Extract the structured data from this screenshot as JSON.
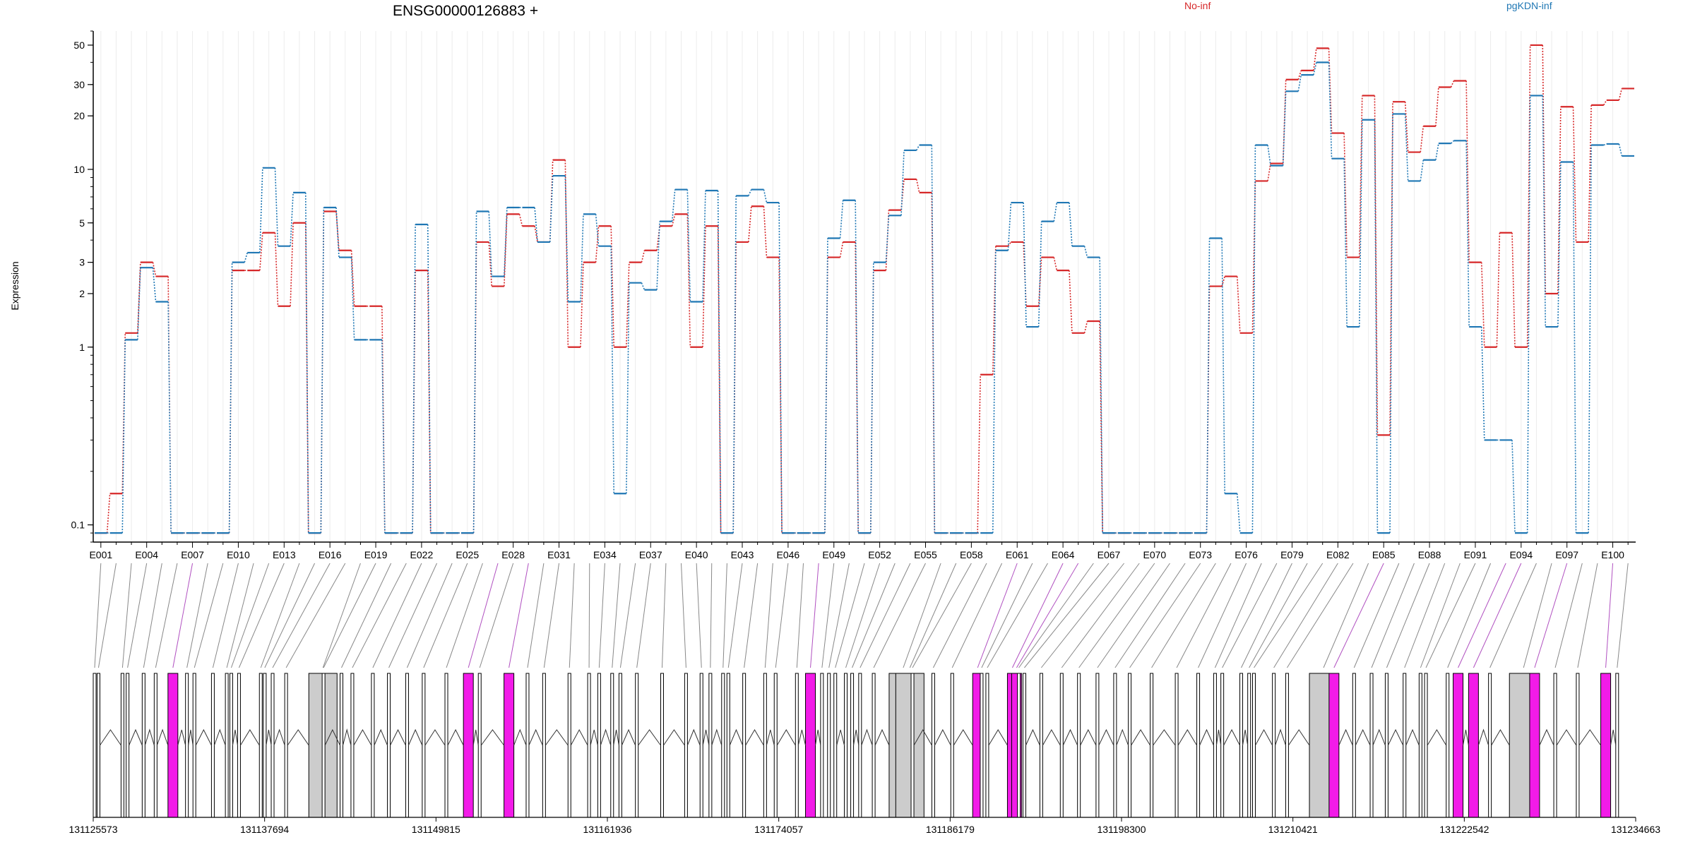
{
  "chart_data": {
    "type": "line",
    "title": "ENSG00000126883 +",
    "ylabel": "Expression",
    "yscale": "log",
    "ylim": [
      0.08,
      60
    ],
    "yticks": [
      0.1,
      1,
      2,
      3,
      5,
      10,
      20,
      30,
      50
    ],
    "ytick_labels": [
      "0.1",
      "1",
      "2",
      "3",
      "5",
      "10",
      "20",
      "30",
      "50"
    ],
    "legend": [
      "No-inf",
      "pgKDN-inf"
    ],
    "colors": {
      "No-inf": "#d62728",
      "pgKDN-inf": "#1f77b4"
    },
    "grid": "vertical",
    "exon_labels": [
      "E001",
      "E004",
      "E007",
      "E010",
      "E013",
      "E016",
      "E019",
      "E022",
      "E025",
      "E028",
      "E031",
      "E034",
      "E037",
      "E040",
      "E043",
      "E046",
      "E049",
      "E052",
      "E055",
      "E058",
      "E061",
      "E064",
      "E067",
      "E070",
      "E073",
      "E076",
      "E079",
      "E082",
      "E085",
      "E088",
      "E091",
      "E094",
      "E097",
      "E100"
    ],
    "x": [
      "E001",
      "E002",
      "E003",
      "E004",
      "E005",
      "E006",
      "E007",
      "E008",
      "E009",
      "E010",
      "E011",
      "E012",
      "E013",
      "E014",
      "E015",
      "E016",
      "E017",
      "E018",
      "E019",
      "E020",
      "E021",
      "E022",
      "E023",
      "E024",
      "E025",
      "E026",
      "E027",
      "E028",
      "E029",
      "E030",
      "E031",
      "E032",
      "E033",
      "E034",
      "E035",
      "E036",
      "E037",
      "E038",
      "E039",
      "E040",
      "E041",
      "E042",
      "E043",
      "E044",
      "E045",
      "E046",
      "E047",
      "E048",
      "E049",
      "E050",
      "E051",
      "E052",
      "E053",
      "E054",
      "E055",
      "E056",
      "E057",
      "E058",
      "E059",
      "E060",
      "E061",
      "E062",
      "E063",
      "E064",
      "E065",
      "E066",
      "E067",
      "E068",
      "E069",
      "E070",
      "E071",
      "E072",
      "E073",
      "E074",
      "E075",
      "E076",
      "E077",
      "E078",
      "E079",
      "E080",
      "E081",
      "E082",
      "E083",
      "E084",
      "E085",
      "E086",
      "E087",
      "E088",
      "E089",
      "E090",
      "E091",
      "E092",
      "E093",
      "E094",
      "E095",
      "E096",
      "E097",
      "E098",
      "E099",
      "E100",
      "E101"
    ],
    "series": [
      {
        "name": "No-inf",
        "values": [
          0.09,
          0.15,
          1.2,
          3.0,
          2.5,
          0.09,
          0.09,
          0.09,
          0.09,
          2.7,
          2.7,
          4.4,
          1.7,
          5.0,
          0.09,
          5.8,
          3.5,
          1.7,
          1.7,
          0.09,
          0.09,
          2.7,
          0.09,
          0.09,
          0.09,
          3.9,
          2.2,
          5.6,
          4.8,
          3.9,
          11.3,
          1.0,
          3.0,
          4.8,
          1.0,
          3.0,
          3.5,
          4.8,
          5.6,
          1.0,
          4.8,
          0.09,
          3.9,
          6.2,
          3.2,
          0.09,
          0.09,
          0.09,
          3.2,
          3.9,
          0.09,
          2.7,
          5.9,
          8.8,
          7.4,
          0.09,
          0.09,
          0.09,
          0.7,
          3.7,
          3.9,
          1.7,
          3.2,
          2.7,
          1.2,
          1.4,
          0.09,
          0.09,
          0.09,
          0.09,
          0.09,
          0.09,
          0.09,
          2.2,
          2.5,
          1.2,
          8.6,
          10.8,
          32.0,
          36.0,
          48.0,
          16.0,
          3.2,
          26.0,
          0.32,
          24.0,
          12.5,
          17.5,
          29.0,
          31.5,
          3.0,
          1.0,
          4.4,
          1.0,
          50.0,
          2.0,
          22.5,
          3.9,
          23.0,
          24.5,
          28.5
        ]
      },
      {
        "name": "pgKDN-inf",
        "values": [
          0.09,
          0.09,
          1.1,
          2.8,
          1.8,
          0.09,
          0.09,
          0.09,
          0.09,
          3.0,
          3.4,
          10.2,
          3.7,
          7.4,
          0.09,
          6.1,
          3.2,
          1.1,
          1.1,
          0.09,
          0.09,
          4.9,
          0.09,
          0.09,
          0.09,
          5.8,
          2.5,
          6.1,
          6.1,
          3.9,
          9.2,
          1.8,
          5.6,
          3.7,
          0.15,
          2.3,
          2.1,
          5.1,
          7.7,
          1.8,
          7.6,
          0.09,
          7.1,
          7.7,
          6.5,
          0.09,
          0.09,
          0.09,
          4.1,
          6.7,
          0.09,
          3.0,
          5.5,
          12.8,
          13.7,
          0.09,
          0.09,
          0.09,
          0.09,
          3.5,
          6.5,
          1.3,
          5.1,
          6.5,
          3.7,
          3.2,
          0.09,
          0.09,
          0.09,
          0.09,
          0.09,
          0.09,
          0.09,
          4.1,
          0.15,
          0.09,
          13.7,
          10.5,
          27.5,
          34.0,
          40.0,
          11.5,
          1.3,
          19.0,
          0.09,
          20.5,
          8.6,
          11.3,
          14.0,
          14.5,
          1.3,
          0.3,
          0.3,
          0.09,
          26.0,
          1.3,
          11.0,
          0.09,
          13.7,
          13.9,
          11.9
        ]
      }
    ],
    "genomic_ticks": [
      "131125573",
      "131137694",
      "131149815",
      "131161936",
      "131174057",
      "131186179",
      "131198300",
      "131210421",
      "131222542",
      "131234663"
    ]
  }
}
